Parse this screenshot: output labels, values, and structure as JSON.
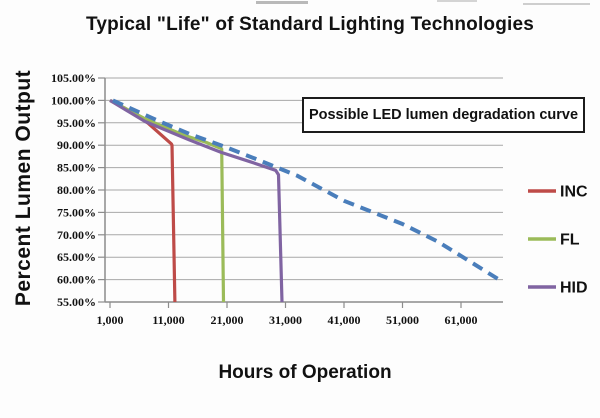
{
  "title": "Typical \"Life\" of Standard Lighting Technologies",
  "chart_data": {
    "type": "line",
    "title": "Typical \"Life\" of Standard Lighting Technologies",
    "xlabel": "Hours of Operation",
    "ylabel": "Percent Lumen Output",
    "grid": "horizontal",
    "legend_position": "right-outside",
    "xlim": [
      1000,
      68200
    ],
    "ylim": [
      55,
      105
    ],
    "x_ticks": [
      1000,
      11000,
      21000,
      31000,
      41000,
      51000,
      61000
    ],
    "x_tick_labels": [
      "1,000",
      "11,000",
      "21,000",
      "31,000",
      "41,000",
      "51,000",
      "61,000"
    ],
    "y_ticks": [
      105,
      100,
      95,
      90,
      85,
      80,
      75,
      70,
      65,
      60,
      55
    ],
    "y_tick_labels": [
      "105.00%",
      "100.00%",
      "95.00%",
      "90.00%",
      "85.00%",
      "80.00%",
      "75.00%",
      "70.00%",
      "65.00%",
      "60.00%",
      "55.00%"
    ],
    "annotation": {
      "text": "Possible LED lumen degradation curve",
      "refers_to": "LED"
    },
    "colors": {
      "grid": "#a8a8a8",
      "axis": "#8c8c8c",
      "text": "#111111"
    },
    "series": [
      {
        "name": "INC",
        "color": "#be4b48",
        "dash": false,
        "in_legend": true,
        "points": [
          [
            1000,
            100
          ],
          [
            3500,
            98.3
          ],
          [
            7500,
            94.9
          ],
          [
            11500,
            90.3
          ],
          [
            11600,
            90.0
          ],
          [
            12100,
            55
          ]
        ]
      },
      {
        "name": "FL",
        "color": "#9bbb59",
        "dash": false,
        "in_legend": true,
        "points": [
          [
            1000,
            100
          ],
          [
            7000,
            95.9
          ],
          [
            13500,
            92.3
          ],
          [
            17500,
            90.6
          ],
          [
            20100,
            89.2
          ],
          [
            20400,
            55
          ]
        ]
      },
      {
        "name": "HID",
        "color": "#8064a2",
        "dash": false,
        "in_legend": true,
        "points": [
          [
            1000,
            100
          ],
          [
            7000,
            95.3
          ],
          [
            14500,
            91.2
          ],
          [
            20000,
            88.4
          ],
          [
            25000,
            86.3
          ],
          [
            29300,
            84.4
          ],
          [
            29800,
            83.4
          ],
          [
            30400,
            55
          ]
        ]
      },
      {
        "name": "LED",
        "color": "#4a7ebb",
        "dash": true,
        "in_legend": false,
        "points": [
          [
            1500,
            100
          ],
          [
            9500,
            95.3
          ],
          [
            15000,
            92.3
          ],
          [
            20500,
            89.7
          ],
          [
            26000,
            86.9
          ],
          [
            33000,
            83.2
          ],
          [
            41000,
            77.6
          ],
          [
            51000,
            72.4
          ],
          [
            57000,
            68.5
          ],
          [
            61000,
            65.3
          ],
          [
            67500,
            60
          ]
        ]
      }
    ]
  }
}
